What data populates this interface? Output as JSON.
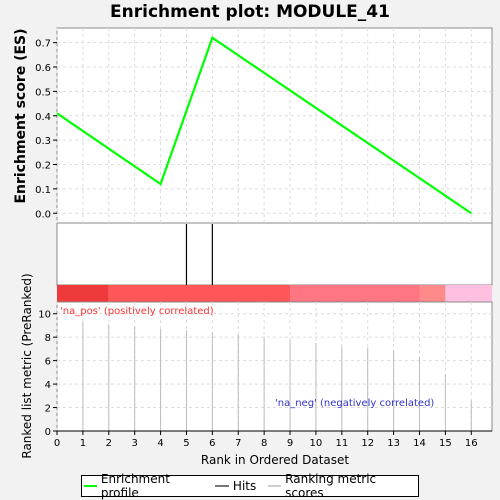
{
  "title": "Enrichment plot: MODULE_41",
  "colors": {
    "profile": "#00ff00",
    "hits": "#000000",
    "metric": "#bdbdbd",
    "pos_text": "#ff3333",
    "neg_text": "#3333cc"
  },
  "chart_data": {
    "type": "line",
    "title": "Enrichment plot: MODULE_41",
    "xlabel": "Rank in Ordered Dataset",
    "xlim": [
      0,
      16.8
    ],
    "x_ticks": [
      "0",
      "1",
      "2",
      "3",
      "4",
      "5",
      "6",
      "7",
      "8",
      "9",
      "10",
      "11",
      "12",
      "13",
      "14",
      "15",
      "16"
    ],
    "es": {
      "ylabel": "Enrichment score (ES)",
      "ylim": [
        -0.04,
        0.76
      ],
      "y_ticks": [
        "0.0",
        "0.1",
        "0.2",
        "0.3",
        "0.4",
        "0.5",
        "0.6",
        "0.7"
      ],
      "series": [
        {
          "name": "Enrichment profile",
          "x": [
            0,
            4,
            6,
            16
          ],
          "y": [
            0.41,
            0.12,
            0.72,
            0.0
          ]
        }
      ]
    },
    "hits": {
      "x": [
        5,
        6
      ]
    },
    "heatmap_segments": [
      {
        "from": 0,
        "to": 2,
        "color": "#ee3a3a"
      },
      {
        "from": 2,
        "to": 9,
        "color": "#ff5757"
      },
      {
        "from": 9,
        "to": 14,
        "color": "#ff7582"
      },
      {
        "from": 14,
        "to": 15,
        "color": "#ff8a8a"
      },
      {
        "from": 15,
        "to": 16.8,
        "color": "#ffc0e0"
      }
    ],
    "metric": {
      "ylabel": "Ranked list metric (PreRanked)",
      "ylim": [
        0,
        11
      ],
      "y_ticks": [
        "0",
        "2",
        "4",
        "6",
        "8",
        "10"
      ],
      "x": [
        1,
        2,
        3,
        4,
        5,
        6,
        7,
        8,
        9,
        10,
        11,
        12,
        13,
        14,
        15,
        16
      ],
      "values": [
        9.3,
        9.1,
        8.9,
        8.7,
        8.6,
        8.4,
        8.2,
        8.0,
        7.8,
        7.5,
        7.2,
        7.1,
        6.9,
        6.3,
        4.8,
        2.6
      ]
    },
    "annotations": {
      "pos": "'na_pos' (positively correlated)",
      "neg": "'na_neg' (negatively correlated)"
    }
  },
  "legend": {
    "profile_label": "Enrichment profile",
    "hits_label": "Hits",
    "metric_label": "Ranking metric scores"
  }
}
